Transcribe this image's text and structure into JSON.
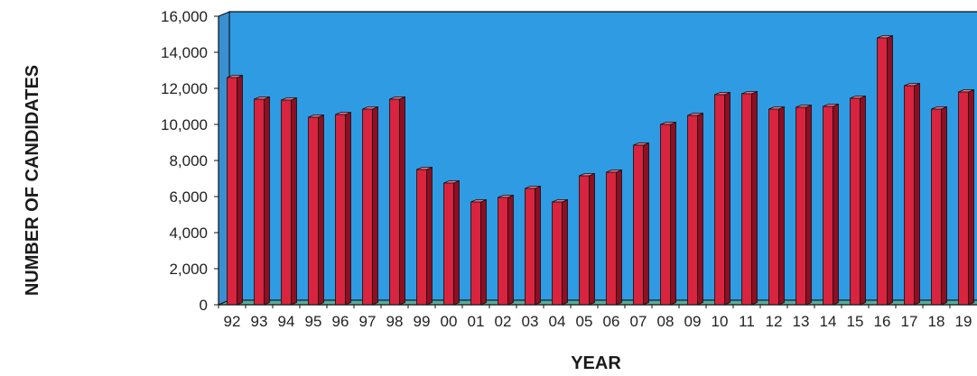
{
  "chart_data": {
    "type": "bar",
    "title": "",
    "xlabel": "YEAR",
    "ylabel": "NUMBER OF CANDIDATES",
    "ylim": [
      0,
      16000
    ],
    "yticks": [
      "0",
      "2,000",
      "4,000",
      "6,000",
      "8,000",
      "10,000",
      "12,000",
      "14,000",
      "16,000"
    ],
    "ytick_values": [
      0,
      2000,
      4000,
      6000,
      8000,
      10000,
      12000,
      14000,
      16000
    ],
    "categories": [
      "92",
      "93",
      "94",
      "95",
      "96",
      "97",
      "98",
      "99",
      "00",
      "01",
      "02",
      "03",
      "04",
      "05",
      "06",
      "07",
      "08",
      "09",
      "10",
      "11",
      "12",
      "13",
      "14",
      "15",
      "16",
      "17",
      "18",
      "19"
    ],
    "values": [
      12600,
      11400,
      11350,
      10400,
      10550,
      10850,
      11400,
      7500,
      6750,
      5700,
      5950,
      6450,
      5700,
      7150,
      7350,
      8850,
      10000,
      10500,
      11650,
      11700,
      10850,
      10950,
      11000,
      11450,
      14800,
      12150,
      10850,
      11800
    ],
    "grid": false,
    "legend": "none",
    "colors": {
      "plot_background": "#2f9be3",
      "floor": "#5aaa9a",
      "bar_front": "#d8243e",
      "bar_side": "#8e0e22",
      "bar_top": "#f07a8a",
      "outline": "#101010"
    }
  }
}
